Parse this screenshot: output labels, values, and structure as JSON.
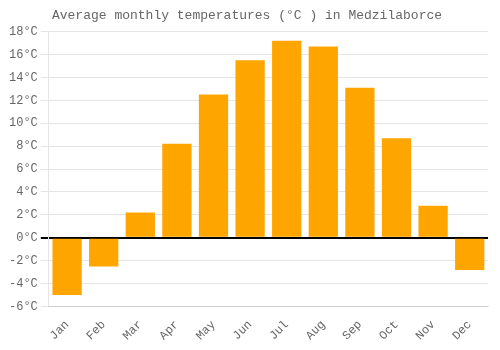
{
  "chart_data": {
    "type": "bar",
    "title": "Average monthly temperatures (°C ) in Medzilaborce",
    "categories": [
      "Jan",
      "Feb",
      "Mar",
      "Apr",
      "May",
      "Jun",
      "Jul",
      "Aug",
      "Sep",
      "Oct",
      "Nov",
      "Dec"
    ],
    "values": [
      -5.0,
      -2.5,
      2.2,
      8.2,
      12.5,
      15.5,
      17.2,
      16.7,
      13.1,
      8.7,
      2.8,
      -2.8
    ],
    "color": "#FFA500",
    "ylim": [
      -6,
      18
    ],
    "yticks": [
      {
        "value": -6,
        "label": "-6°C"
      },
      {
        "value": -4,
        "label": "-4°C"
      },
      {
        "value": -2,
        "label": "-2°C"
      },
      {
        "value": 0,
        "label": "0°C"
      },
      {
        "value": 2,
        "label": "2°C"
      },
      {
        "value": 4,
        "label": "4°C"
      },
      {
        "value": 6,
        "label": "6°C"
      },
      {
        "value": 8,
        "label": "8°C"
      },
      {
        "value": 10,
        "label": "10°C"
      },
      {
        "value": 12,
        "label": "12°C"
      },
      {
        "value": 14,
        "label": "14°C"
      },
      {
        "value": 16,
        "label": "16°C"
      },
      {
        "value": 18,
        "label": "18°C"
      }
    ],
    "grid": true
  }
}
